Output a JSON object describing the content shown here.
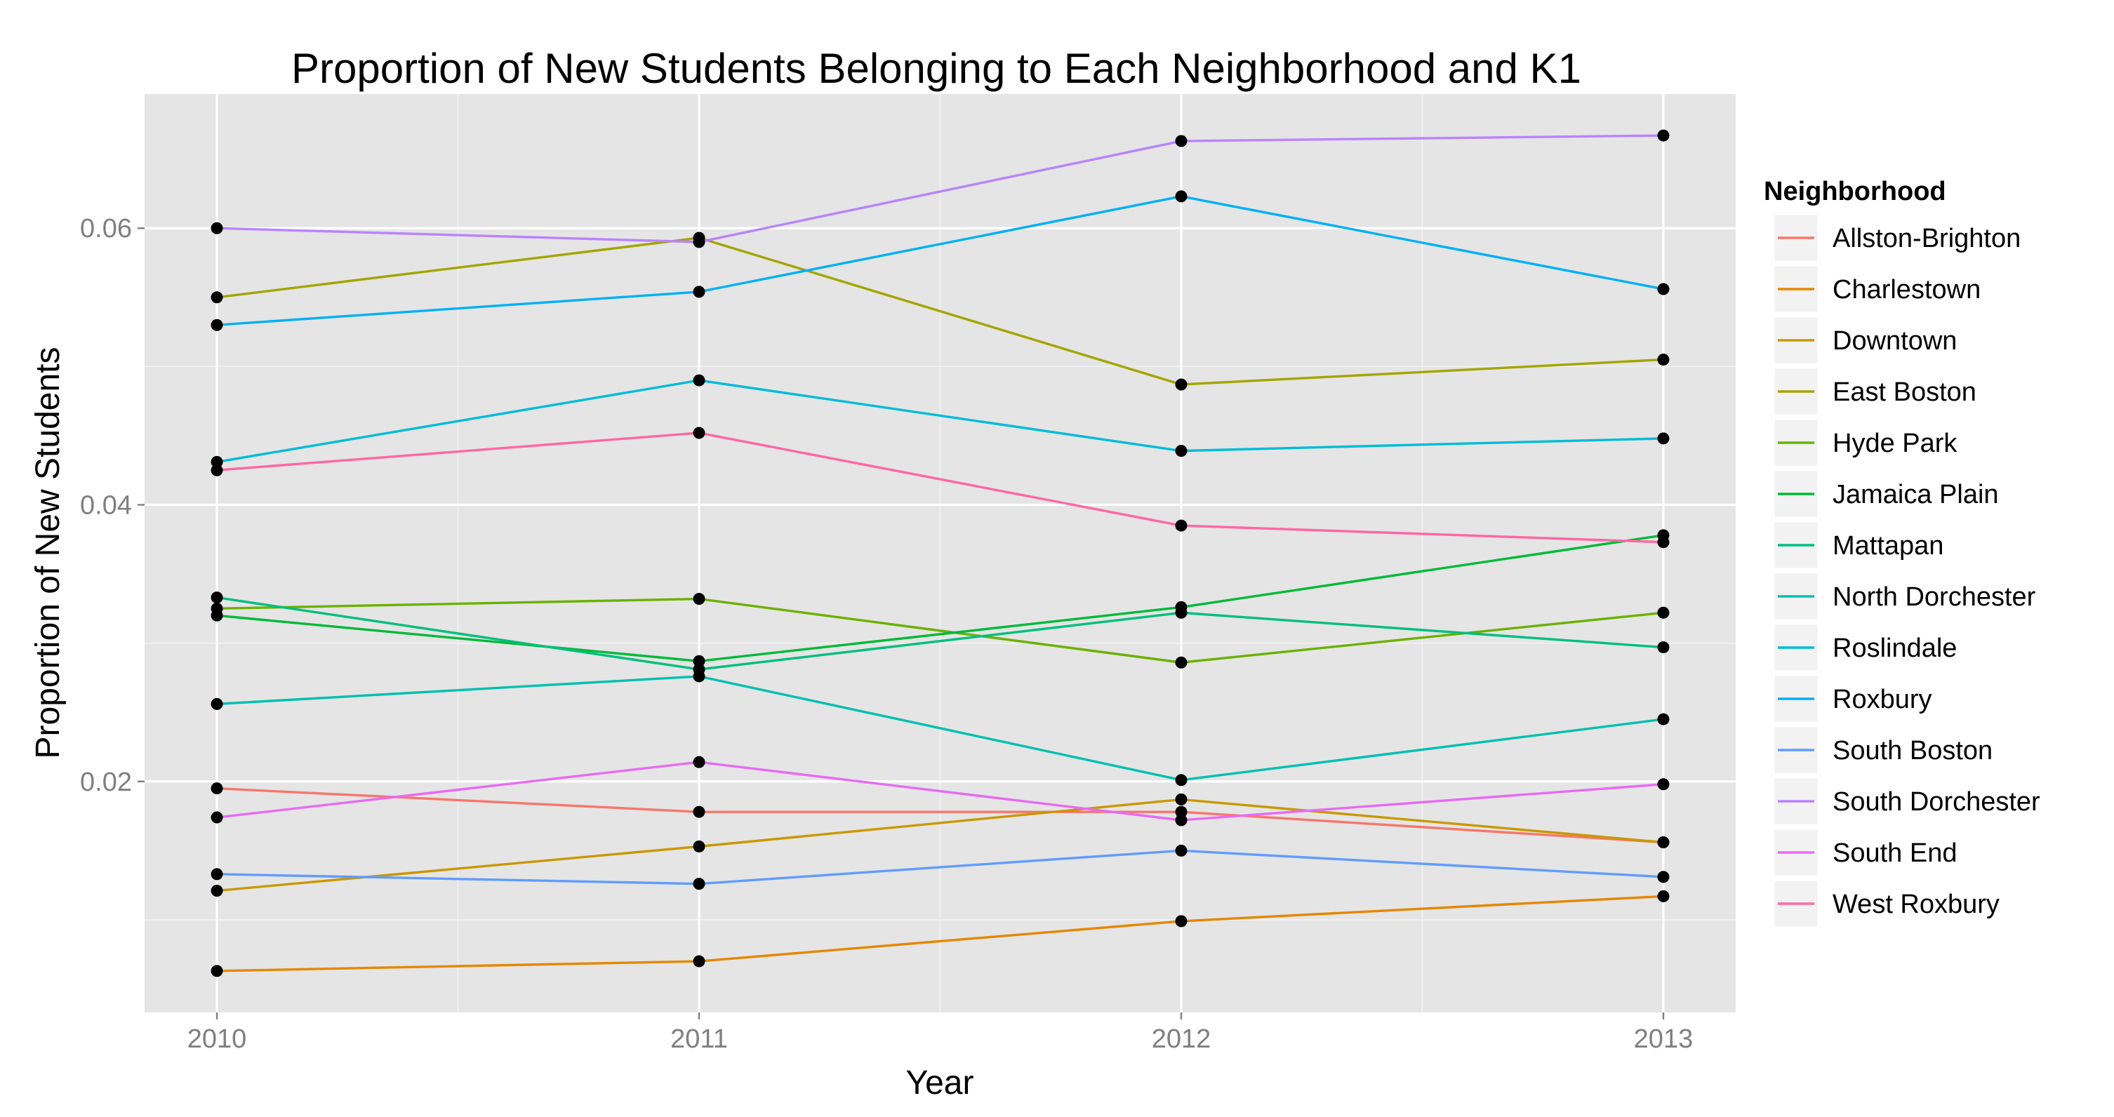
{
  "chart_data": {
    "type": "line",
    "title": "Proportion of New Students Belonging to Each Neighborhood and K1",
    "xlabel": "Year",
    "ylabel": "Proportion of New Students",
    "x": [
      2010,
      2011,
      2012,
      2013
    ],
    "x_tick_labels": [
      "2010",
      "2011",
      "2012",
      "2013"
    ],
    "xlim": [
      2009.85,
      2013.15
    ],
    "ylim": [
      0.0033,
      0.0697
    ],
    "y_ticks": [
      0.02,
      0.04,
      0.06
    ],
    "y_tick_labels": [
      "0.02",
      "0.04",
      "0.06"
    ],
    "grid": true,
    "legend": {
      "title": "Neighborhood",
      "position": "right"
    },
    "series": [
      {
        "name": "Allston-Brighton",
        "color": "#F8766D",
        "values": [
          0.0195,
          0.0178,
          0.0178,
          0.0156
        ]
      },
      {
        "name": "Charlestown",
        "color": "#E58700",
        "values": [
          0.0063,
          0.007,
          0.0099,
          0.0117
        ]
      },
      {
        "name": "Downtown",
        "color": "#C99800",
        "values": [
          0.0121,
          0.0153,
          0.0187,
          0.0156
        ]
      },
      {
        "name": "East Boston",
        "color": "#A3A500",
        "values": [
          0.055,
          0.0593,
          0.0487,
          0.0505
        ]
      },
      {
        "name": "Hyde Park",
        "color": "#6BB100",
        "values": [
          0.0325,
          0.0332,
          0.0286,
          0.0322
        ]
      },
      {
        "name": "Jamaica Plain",
        "color": "#00BA38",
        "values": [
          0.032,
          0.0287,
          0.0326,
          0.0378
        ]
      },
      {
        "name": "Mattapan",
        "color": "#00BF7D",
        "values": [
          0.0333,
          0.0281,
          0.0322,
          0.0297
        ]
      },
      {
        "name": "North Dorchester",
        "color": "#00C0AF",
        "values": [
          0.0256,
          0.0276,
          0.0201,
          0.0245
        ]
      },
      {
        "name": "Roslindale",
        "color": "#00BCD8",
        "values": [
          0.0431,
          0.049,
          0.0439,
          0.0448
        ]
      },
      {
        "name": "Roxbury",
        "color": "#00B0F6",
        "values": [
          0.053,
          0.0554,
          0.0623,
          0.0556
        ]
      },
      {
        "name": "South Boston",
        "color": "#619CFF",
        "values": [
          0.0133,
          0.0126,
          0.015,
          0.0131
        ]
      },
      {
        "name": "South Dorchester",
        "color": "#B983FF",
        "values": [
          0.06,
          0.059,
          0.0663,
          0.0667
        ]
      },
      {
        "name": "South End",
        "color": "#E76BF3",
        "values": [
          0.0174,
          0.0214,
          0.0172,
          0.0198
        ]
      },
      {
        "name": "West Roxbury",
        "color": "#FF67A4",
        "values": [
          0.0425,
          0.0452,
          0.0385,
          0.0373
        ]
      }
    ]
  }
}
